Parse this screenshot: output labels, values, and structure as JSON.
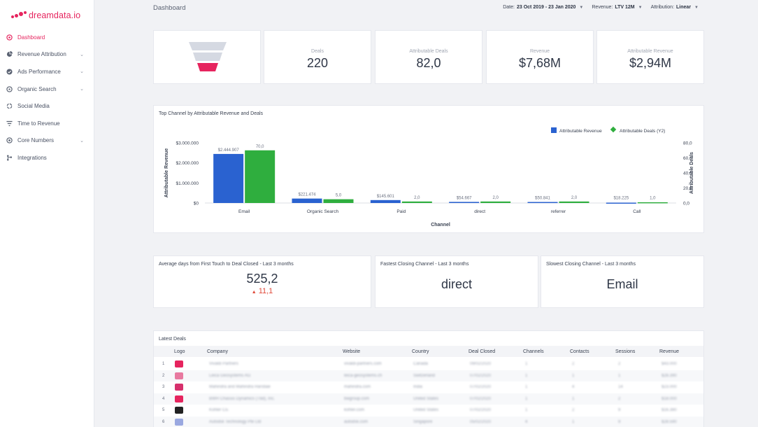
{
  "app": {
    "brand": "dreamdata.io",
    "brand_color": "#e6245e",
    "page_title": "Dashboard"
  },
  "sidebar": {
    "items": [
      {
        "label": "Dashboard",
        "icon": "dashboard-icon",
        "active": true,
        "expandable": false
      },
      {
        "label": "Revenue Attribution",
        "icon": "pie-chart-icon",
        "active": false,
        "expandable": true
      },
      {
        "label": "Ads Performance",
        "icon": "check-circle-icon",
        "active": false,
        "expandable": true
      },
      {
        "label": "Organic Search",
        "icon": "target-icon",
        "active": false,
        "expandable": true
      },
      {
        "label": "Social Media",
        "icon": "share-icon",
        "active": false,
        "expandable": false
      },
      {
        "label": "Time to Revenue",
        "icon": "filter-icon",
        "active": false,
        "expandable": false
      },
      {
        "label": "Core Numbers",
        "icon": "numbers-icon",
        "active": false,
        "expandable": true
      },
      {
        "label": "Integrations",
        "icon": "integrations-icon",
        "active": false,
        "expandable": false
      }
    ]
  },
  "filters": {
    "date_label": "Date:",
    "date_value": "23 Oct 2019 - 23 Jan 2020",
    "revenue_label": "Revenue:",
    "revenue_value": "LTV 12M",
    "attribution_label": "Attribution:",
    "attribution_value": "Linear"
  },
  "kpis": [
    {
      "label": "Deals",
      "value": "220"
    },
    {
      "label": "Attributable Deals",
      "value": "82,0"
    },
    {
      "label": "Revenue",
      "value": "$7,68M"
    },
    {
      "label": "Attributable Revenue",
      "value": "$2,94M"
    }
  ],
  "chart_data": {
    "type": "bar",
    "title": "Top Channel by Attributable Revenue and Deals",
    "xlabel": "Channel",
    "ylabel": "Attributable Revenue",
    "y2label": "Attributable Deals",
    "categories": [
      "Email",
      "Organic Search",
      "Paid",
      "direct",
      "referrer",
      "Call"
    ],
    "series": [
      {
        "name": "Attributable Revenue",
        "axis": "left",
        "color": "#2a62d0",
        "values": [
          2444907,
          221474,
          145601,
          54667,
          50841,
          18225
        ],
        "labels": [
          "$2.444.907",
          "$221.474",
          "$145.601",
          "$54.667",
          "$50.841",
          "$18.225"
        ]
      },
      {
        "name": "Attributable Deals (Y2)",
        "axis": "right",
        "color": "#2fae3e",
        "values": [
          70.0,
          5.0,
          2.0,
          2.0,
          2.0,
          1.0
        ],
        "labels": [
          "70,0",
          "5,0",
          "2,0",
          "2,0",
          "2,0",
          "1,0"
        ]
      }
    ],
    "ylim": [
      0,
      3000000
    ],
    "y2lim": [
      0,
      80
    ],
    "yticks": [
      "$0",
      "$1.000.000",
      "$2.000.000",
      "$3.000.000"
    ],
    "y2ticks": [
      "0,0",
      "20,0",
      "40,0",
      "60,0",
      "80,0"
    ],
    "legend": "top-right",
    "grid": false
  },
  "stats": {
    "avg_days_title": "Average days from First Touch to Deal Closed - Last 3 months",
    "avg_days_value": "525,2",
    "avg_days_delta": "11,1",
    "fastest_title": "Fastest Closing Channel - Last 3 months",
    "fastest_value": "direct",
    "slowest_title": "Slowest Closing Channel - Last 3 months",
    "slowest_value": "Email"
  },
  "table": {
    "title": "Latest Deals",
    "columns": [
      "Logo",
      "Company",
      "Website",
      "Country",
      "Deal Closed",
      "Channels",
      "Contacts",
      "Sessions",
      "Revenue"
    ],
    "rows": [
      {
        "num": "1",
        "company": "Vivaldi Partners",
        "website": "vivaldi-partners.com",
        "country": "Canada",
        "date": "09/02/2020",
        "channels": "1",
        "contacts": "2",
        "sessions": "2",
        "revenue": "$43.000",
        "logo_color": "#e6245e"
      },
      {
        "num": "2",
        "company": "Leica Geosystems AG",
        "website": "leica-geosystems.ch",
        "country": "Switzerland",
        "date": "07/02/2020",
        "channels": "1",
        "contacts": "1",
        "sessions": "1",
        "revenue": "$28.390",
        "logo_color": "#e87aa0"
      },
      {
        "num": "3",
        "company": "Mahindra and Mahindra Harsbae",
        "website": "mahindra.com",
        "country": "India",
        "date": "07/02/2020",
        "channels": "1",
        "contacts": "4",
        "sessions": "14",
        "revenue": "$23.000",
        "logo_color": "#d6306c"
      },
      {
        "num": "4",
        "company": "BWH Chassis Dynamics (Tbd), Inc.",
        "website": "bwgroup.com",
        "country": "United States",
        "date": "07/02/2020",
        "channels": "1",
        "contacts": "1",
        "sessions": "2",
        "revenue": "$18.000",
        "logo_color": "#e6245e"
      },
      {
        "num": "5",
        "company": "Kohler Co.",
        "website": "kohler.com",
        "country": "United States",
        "date": "07/02/2020",
        "channels": "1",
        "contacts": "2",
        "sessions": "9",
        "revenue": "$16.380",
        "logo_color": "#222222"
      },
      {
        "num": "6",
        "company": "Autodsk Technology Pte Ltd",
        "website": "autodsk.com",
        "country": "Singapore",
        "date": "05/02/2020",
        "channels": "4",
        "contacts": "1",
        "sessions": "9",
        "revenue": "$28.590",
        "logo_color": "#9aa8e0"
      }
    ]
  }
}
